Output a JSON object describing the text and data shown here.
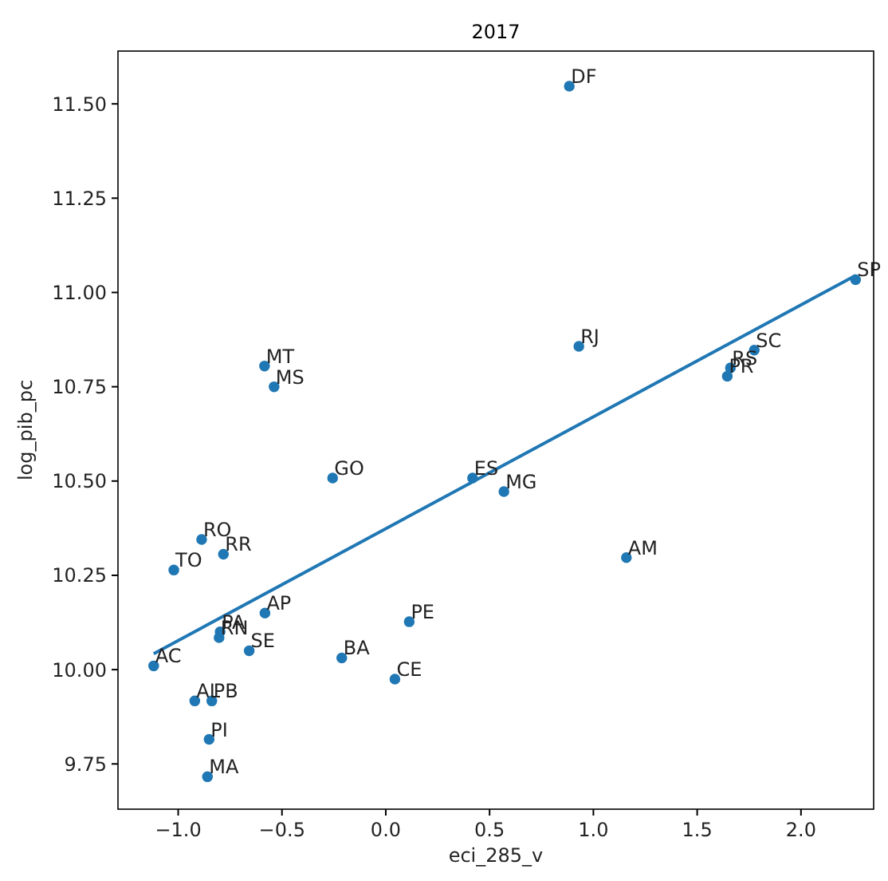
{
  "chart_data": {
    "type": "scatter",
    "title": "2017",
    "xlabel": "eci_285_v",
    "ylabel": "log_pib_pc",
    "xlim": [
      -1.29,
      2.35
    ],
    "ylim": [
      9.63,
      11.64
    ],
    "xticks": [
      {
        "value": -1,
        "label": "−1.0"
      },
      {
        "value": -0.5,
        "label": "−0.5"
      },
      {
        "value": 0,
        "label": "0.0"
      },
      {
        "value": 0.5,
        "label": "0.5"
      },
      {
        "value": 1,
        "label": "1.0"
      },
      {
        "value": 1.5,
        "label": "1.5"
      },
      {
        "value": 2,
        "label": "2.0"
      }
    ],
    "yticks": [
      {
        "value": 9.75,
        "label": "9.75"
      },
      {
        "value": 10,
        "label": "10.00"
      },
      {
        "value": 10.25,
        "label": "10.25"
      },
      {
        "value": 10.5,
        "label": "10.50"
      },
      {
        "value": 10.75,
        "label": "10.75"
      },
      {
        "value": 11,
        "label": "11.00"
      },
      {
        "value": 11.25,
        "label": "11.25"
      },
      {
        "value": 11.5,
        "label": "11.50"
      }
    ],
    "grid": false,
    "marker": "circle",
    "series": [
      {
        "color": "#1f77b4",
        "x": [
          -0.887,
          -0.782,
          -1.021,
          -0.582,
          -0.798,
          -0.803,
          -0.658,
          -1.118,
          -0.212,
          -0.92,
          -0.838,
          -0.851,
          -0.859,
          0.044,
          -0.256,
          0.418,
          0.569,
          0.113,
          0.93,
          -0.584,
          -0.538,
          0.884,
          1.775,
          1.66,
          1.645,
          2.263,
          1.159
        ],
        "values": [
          10.345,
          10.306,
          10.264,
          10.15,
          10.1,
          10.085,
          10.05,
          10.01,
          10.031,
          9.917,
          9.917,
          9.815,
          9.716,
          9.975,
          10.508,
          10.508,
          10.472,
          10.127,
          10.857,
          10.805,
          10.75,
          11.547,
          10.847,
          10.8,
          10.778,
          11.034,
          10.297
        ]
      },
      {
        "type": "line",
        "marker": "none",
        "color": "#1f77b4",
        "x": [
          -1.118,
          2.263
        ],
        "values": [
          10.042,
          11.045
        ]
      }
    ],
    "annotations": [
      {
        "text": "RO",
        "x": -0.887,
        "y": 10.345
      },
      {
        "text": "RR",
        "x": -0.782,
        "y": 10.306
      },
      {
        "text": "TO",
        "x": -1.021,
        "y": 10.264
      },
      {
        "text": "AP",
        "x": -0.582,
        "y": 10.15
      },
      {
        "text": "PA",
        "x": -0.798,
        "y": 10.1
      },
      {
        "text": "RN",
        "x": -0.803,
        "y": 10.085
      },
      {
        "text": "SE",
        "x": -0.658,
        "y": 10.05
      },
      {
        "text": "AC",
        "x": -1.118,
        "y": 10.01
      },
      {
        "text": "BA",
        "x": -0.212,
        "y": 10.031
      },
      {
        "text": "AL",
        "x": -0.92,
        "y": 9.917
      },
      {
        "text": "PB",
        "x": -0.838,
        "y": 9.917
      },
      {
        "text": "PI",
        "x": -0.851,
        "y": 9.815
      },
      {
        "text": "MA",
        "x": -0.859,
        "y": 9.716
      },
      {
        "text": "CE",
        "x": 0.044,
        "y": 9.975
      },
      {
        "text": "GO",
        "x": -0.256,
        "y": 10.508
      },
      {
        "text": "ES",
        "x": 0.418,
        "y": 10.508
      },
      {
        "text": "MG",
        "x": 0.569,
        "y": 10.472
      },
      {
        "text": "PE",
        "x": 0.113,
        "y": 10.127
      },
      {
        "text": "RJ",
        "x": 0.93,
        "y": 10.857
      },
      {
        "text": "MT",
        "x": -0.584,
        "y": 10.805
      },
      {
        "text": "MS",
        "x": -0.538,
        "y": 10.75
      },
      {
        "text": "DF",
        "x": 0.884,
        "y": 11.547
      },
      {
        "text": "SC",
        "x": 1.775,
        "y": 10.847
      },
      {
        "text": "RS",
        "x": 1.66,
        "y": 10.8
      },
      {
        "text": "PR",
        "x": 1.645,
        "y": 10.778
      },
      {
        "text": "SP",
        "x": 2.263,
        "y": 11.034
      },
      {
        "text": "AM",
        "x": 1.159,
        "y": 10.297
      }
    ]
  }
}
